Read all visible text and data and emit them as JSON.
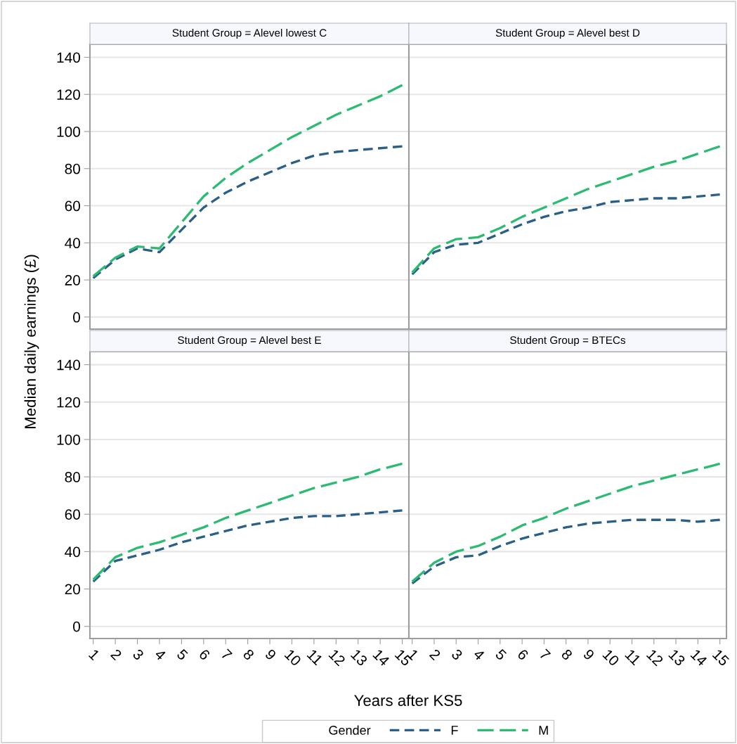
{
  "chart_data": [
    {
      "type": "line",
      "title": "Student Group = Alevel lowest C",
      "ylabel": "Median daily earnings (£)",
      "xlabel": "Years after KS5",
      "legend_title": "Gender",
      "legend": "bottom",
      "grid": "y",
      "tick_labels": "y",
      "line_style": "dashed",
      "x": [
        1,
        2,
        3,
        4,
        5,
        6,
        7,
        8,
        9,
        10,
        11,
        12,
        13,
        14,
        15
      ],
      "xlim": [
        0.85,
        15.3
      ],
      "xticks": [
        1,
        2,
        3,
        4,
        5,
        6,
        7,
        8,
        9,
        10,
        11,
        12,
        13,
        14,
        15
      ],
      "ylim": [
        -6.5,
        147
      ],
      "yticks": [
        0,
        20,
        40,
        60,
        80,
        100,
        120,
        140
      ],
      "series": [
        {
          "name": "F",
          "color": "#2a6088",
          "values": [
            21,
            31,
            37,
            35,
            47,
            59,
            67,
            73,
            78,
            83,
            87,
            89,
            90,
            91,
            92
          ]
        },
        {
          "name": "M",
          "color": "#2dbb74",
          "values": [
            22,
            32,
            38,
            37,
            51,
            65,
            75,
            83,
            90,
            97,
            103,
            109,
            114,
            119,
            125
          ]
        }
      ]
    },
    {
      "type": "line",
      "title": "Student Group = Alevel best D",
      "grid": "y",
      "tick_labels": false,
      "line_style": "dashed",
      "x": [
        1,
        2,
        3,
        4,
        5,
        6,
        7,
        8,
        9,
        10,
        11,
        12,
        13,
        14,
        15
      ],
      "xlim": [
        0.85,
        15.3
      ],
      "xticks": [
        1,
        2,
        3,
        4,
        5,
        6,
        7,
        8,
        9,
        10,
        11,
        12,
        13,
        14,
        15
      ],
      "ylim": [
        -6.5,
        147
      ],
      "yticks": [
        0,
        20,
        40,
        60,
        80,
        100,
        120,
        140
      ],
      "series": [
        {
          "color": "#2a6088",
          "values": [
            23,
            35,
            39,
            40,
            45,
            50,
            54,
            57,
            59,
            62,
            63,
            64,
            64,
            65,
            66
          ]
        },
        {
          "color": "#2dbb74",
          "values": [
            24,
            37,
            42,
            43,
            48,
            54,
            59,
            64,
            69,
            73,
            77,
            81,
            84,
            88,
            92
          ]
        }
      ]
    },
    {
      "type": "line",
      "title": "Student Group = Alevel best E",
      "grid": "y",
      "line_style": "dashed",
      "x": [
        1,
        2,
        3,
        4,
        5,
        6,
        7,
        8,
        9,
        10,
        11,
        12,
        13,
        14,
        15
      ],
      "xlim": [
        0.85,
        15.3
      ],
      "xticks": [
        1,
        2,
        3,
        4,
        5,
        6,
        7,
        8,
        9,
        10,
        11,
        12,
        13,
        14,
        15
      ],
      "ylim": [
        -6.5,
        147
      ],
      "yticks": [
        0,
        20,
        40,
        60,
        80,
        100,
        120,
        140
      ],
      "series": [
        {
          "color": "#2a6088",
          "values": [
            24,
            35,
            38,
            41,
            45,
            48,
            51,
            54,
            56,
            58,
            59,
            59,
            60,
            61,
            62
          ]
        },
        {
          "color": "#2dbb74",
          "values": [
            25,
            37,
            42,
            45,
            49,
            53,
            58,
            62,
            66,
            70,
            74,
            77,
            80,
            84,
            87
          ]
        }
      ]
    },
    {
      "type": "line",
      "title": "Student Group = BTECs",
      "grid": "y",
      "tick_labels": "x",
      "line_style": "dashed",
      "x": [
        1,
        2,
        3,
        4,
        5,
        6,
        7,
        8,
        9,
        10,
        11,
        12,
        13,
        14,
        15
      ],
      "xlim": [
        0.85,
        15.3
      ],
      "xticks": [
        1,
        2,
        3,
        4,
        5,
        6,
        7,
        8,
        9,
        10,
        11,
        12,
        13,
        14,
        15
      ],
      "ylim": [
        -6.5,
        147
      ],
      "yticks": [
        0,
        20,
        40,
        60,
        80,
        100,
        120,
        140
      ],
      "series": [
        {
          "color": "#2a6088",
          "values": [
            23,
            32,
            37,
            38,
            43,
            47,
            50,
            53,
            55,
            56,
            57,
            57,
            57,
            56,
            57
          ]
        },
        {
          "color": "#2dbb74",
          "values": [
            24,
            34,
            40,
            43,
            48,
            54,
            58,
            63,
            67,
            71,
            75,
            78,
            81,
            84,
            87
          ]
        }
      ]
    }
  ]
}
